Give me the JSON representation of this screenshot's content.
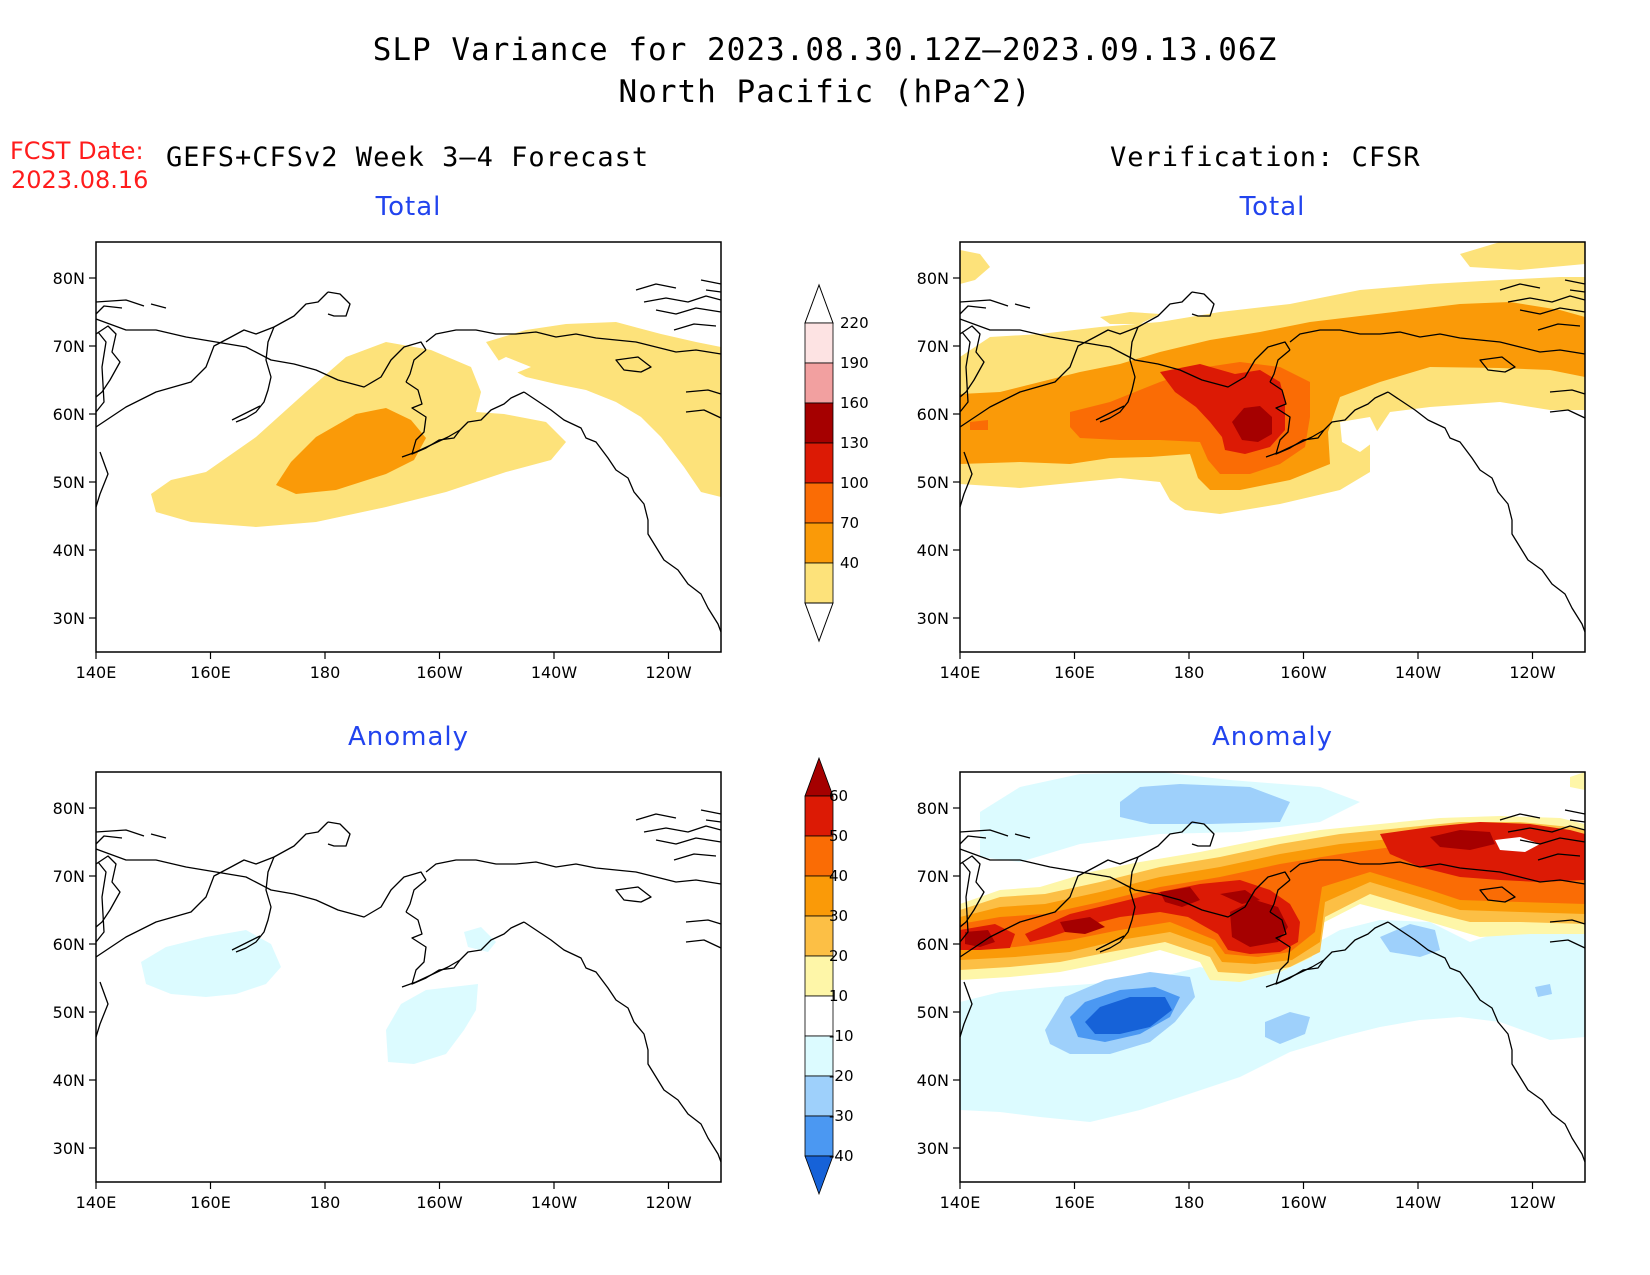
{
  "title": {
    "line1": "SLP Variance for 2023.08.30.12Z–2023.09.13.06Z",
    "line2": "North Pacific (hPa^2)"
  },
  "fcst": {
    "label": "FCST Date:",
    "date": "2023.08.16"
  },
  "left_header": "GEFS+CFSv2 Week 3–4 Forecast",
  "right_header": "Verification: CFSR",
  "panels": [
    {
      "id": "forecast-total",
      "title": "Total"
    },
    {
      "id": "verification-total",
      "title": "Total"
    },
    {
      "id": "forecast-anomaly",
      "title": "Anomaly"
    },
    {
      "id": "verification-anomaly",
      "title": "Anomaly"
    }
  ],
  "axes": {
    "lon_labels": [
      "140E",
      "160E",
      "180",
      "160W",
      "140W",
      "120W"
    ],
    "lat_labels": [
      "80N",
      "70N",
      "60N",
      "50N",
      "40N",
      "30N"
    ],
    "lon_range": [
      "140E",
      "110W"
    ],
    "lat_range": [
      "25N",
      "85N"
    ]
  },
  "colorbars": {
    "total": {
      "labels": [
        "220",
        "190",
        "160",
        "130",
        "100",
        "70",
        "40"
      ],
      "colors": [
        "#fde3e3",
        "#f2a0a0",
        "#a50000",
        "#dc1a05",
        "#fa6c05",
        "#fa9a08",
        "#fde27a"
      ]
    },
    "anomaly": {
      "labels": [
        "60",
        "50",
        "40",
        "30",
        "20",
        "10",
        "-10",
        "-20",
        "-30",
        "-40"
      ],
      "colors": [
        "#a50000",
        "#dc1a05",
        "#fa6c05",
        "#fa9a08",
        "#fcbf45",
        "#fef6a8",
        "#ffffff",
        "#dcfbff",
        "#9ed0fb",
        "#4b98f2",
        "#1662d8",
        "#0a46c8"
      ]
    }
  },
  "palette": {
    "yellow": "#fde27a",
    "orange": "#fa9a08",
    "dark_orange": "#fa6c05",
    "red": "#dc1a05",
    "dark_red": "#a50000",
    "light_yellow": "#fef6a8",
    "gold": "#fcbf45",
    "cyan": "#dcfbff",
    "light_blue": "#9ed0fb",
    "blue": "#4b98f2",
    "dark_blue": "#1662d8"
  }
}
